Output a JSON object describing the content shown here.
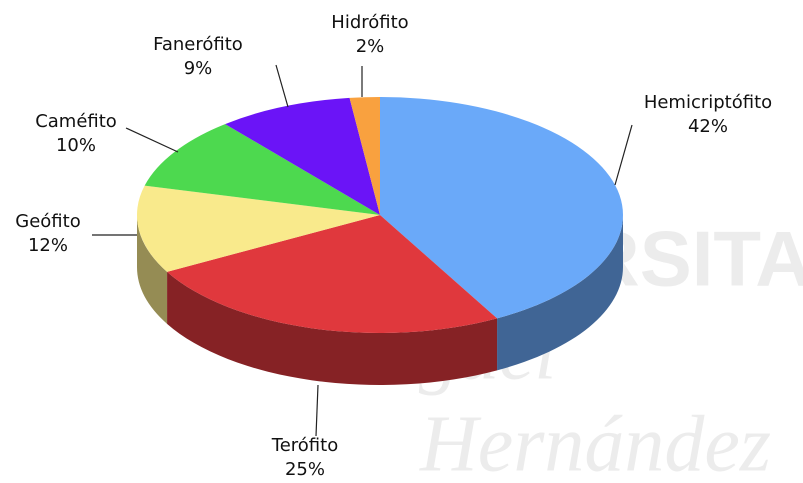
{
  "chart_data": {
    "type": "pie3d",
    "categories": [
      "Hemicriptófito",
      "Terófito",
      "Geófito",
      "Caméfito",
      "Fanerófito",
      "Hidrófito"
    ],
    "values": [
      42,
      25,
      12,
      10,
      9,
      2
    ],
    "value_labels": [
      "42%",
      "25%",
      "12%",
      "10%",
      "9%",
      "2%"
    ],
    "colors": [
      "#6aa9f9",
      "#e0383d",
      "#f9ea8c",
      "#4dd94f",
      "#6b14f7",
      "#f9a13f"
    ],
    "watermark": [
      "UNIVERSITAS",
      "Miguel",
      "Hernández"
    ]
  }
}
